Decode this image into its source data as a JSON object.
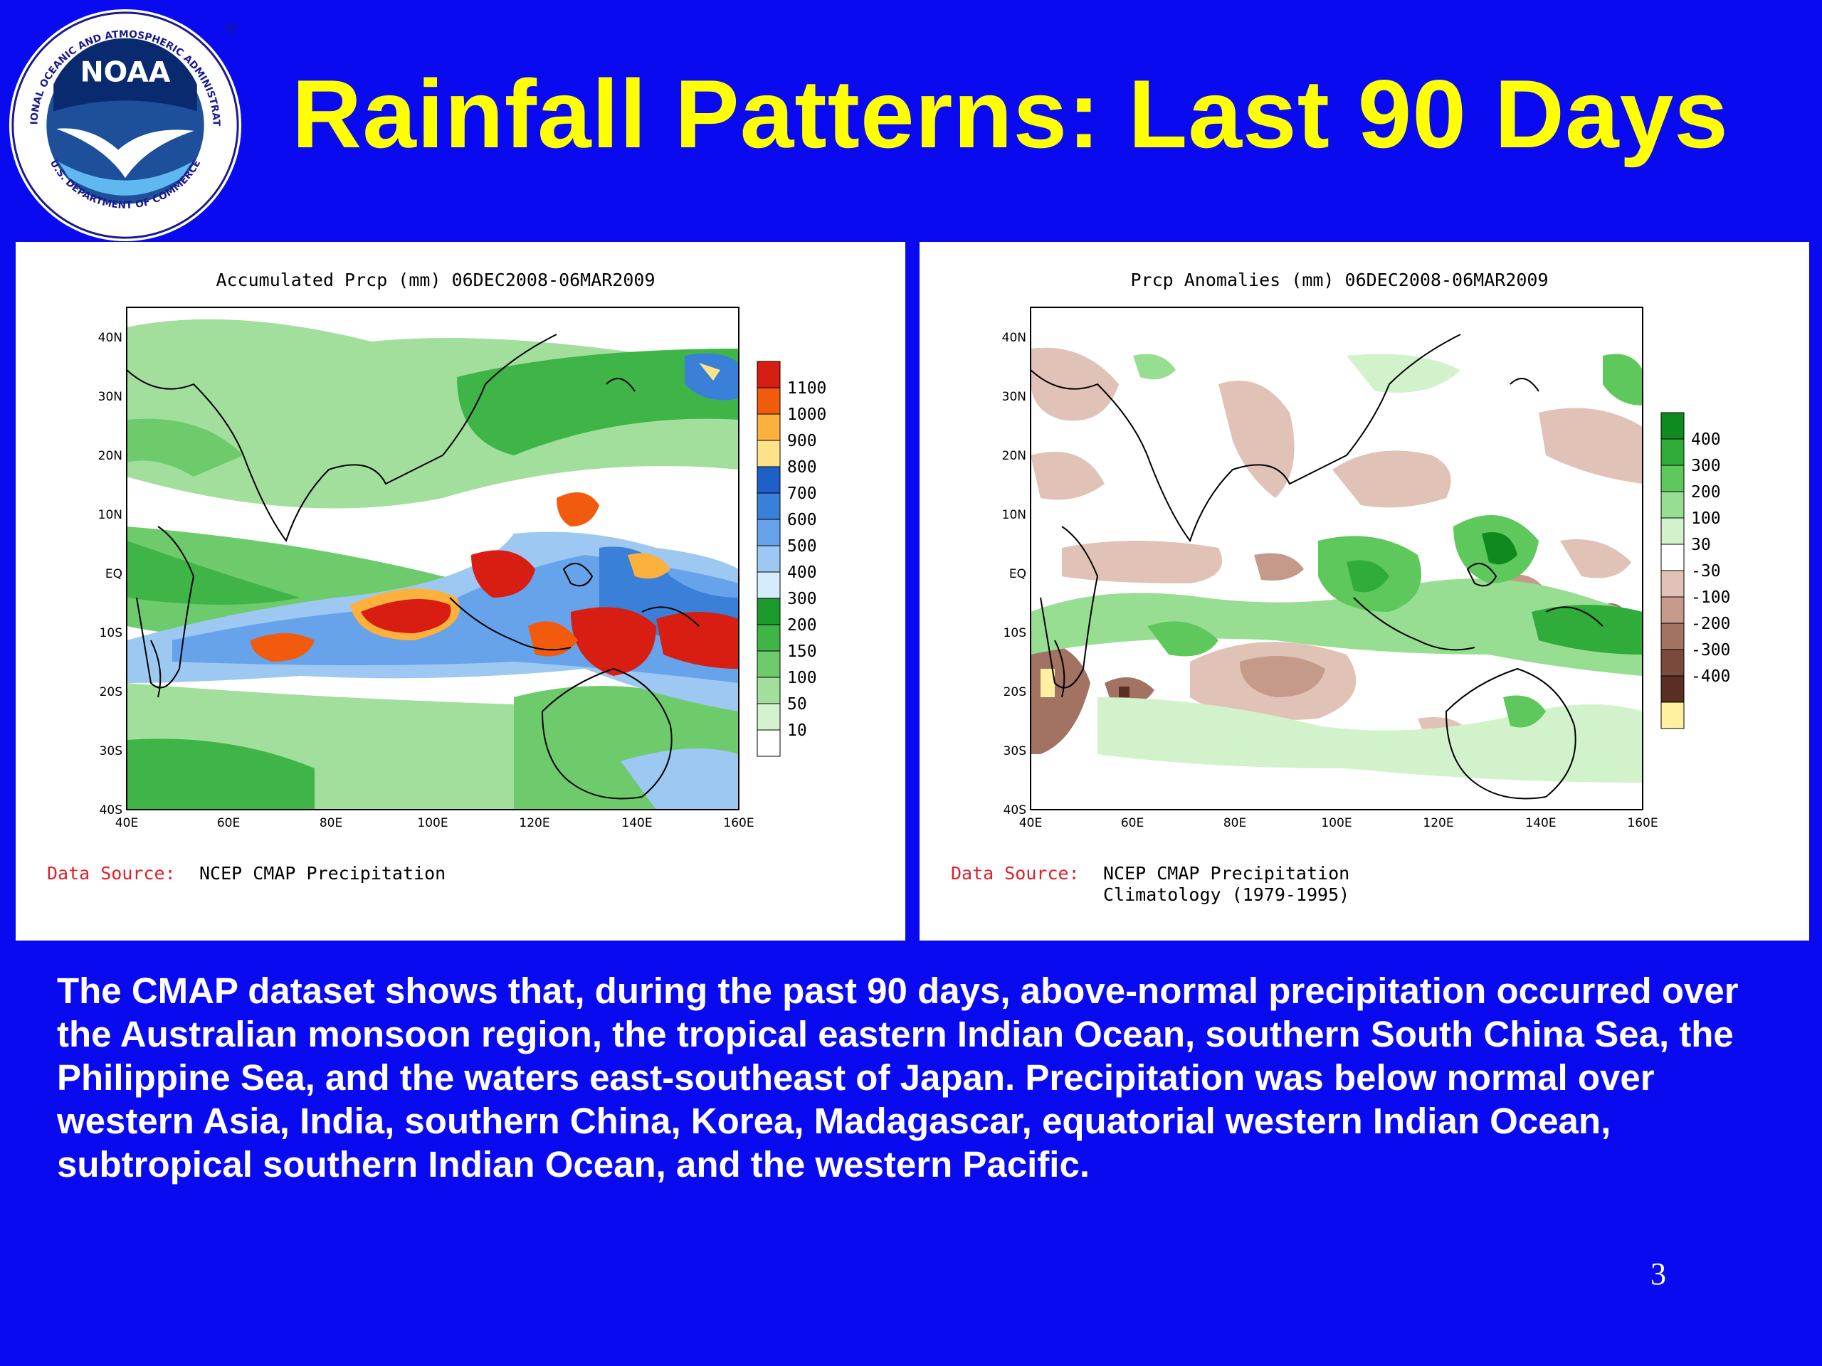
{
  "slide": {
    "title": "Rainfall Patterns: Last 90 Days",
    "page_number": "3",
    "body_text": "The CMAP dataset shows that, during the past 90 days, above-normal precipitation occurred over the Australian monsoon region, the tropical eastern Indian Ocean, southern South China Sea, the Philippine Sea, and the waters east-southeast of Japan. Precipitation was below normal over western Asia, India, southern China, Korea, Madagascar, equatorial western Indian Ocean, subtropical southern Indian Ocean, and the western Pacific."
  },
  "logo": {
    "name": "NOAA",
    "arc_top": "NATIONAL OCEANIC AND ATMOSPHERIC ADMINISTRATION",
    "arc_bottom": "U.S. DEPARTMENT OF COMMERCE",
    "registered": "®"
  },
  "colors": {
    "background": "#0a0af0",
    "title": "#ffff00",
    "body_text": "#ffffff",
    "source_label": "#e0202a"
  },
  "axes": {
    "lon_ticks": [
      "40E",
      "60E",
      "80E",
      "100E",
      "120E",
      "140E",
      "160E"
    ],
    "lat_ticks": [
      "40N",
      "30N",
      "20N",
      "10N",
      "EQ",
      "10S",
      "20S",
      "30S",
      "40S"
    ]
  },
  "map_left": {
    "title": "Accumulated Prcp (mm) 06DEC2008-06MAR2009",
    "source_label": "Data Source:",
    "source_text": "NCEP CMAP Precipitation",
    "colorbar": [
      {
        "label": "1100",
        "color": "#d81e12"
      },
      {
        "label": "1000",
        "color": "#f25a0e"
      },
      {
        "label": "900",
        "color": "#fbb13c"
      },
      {
        "label": "800",
        "color": "#fce38a"
      },
      {
        "label": "700",
        "color": "#1f5fc8"
      },
      {
        "label": "600",
        "color": "#3a7fd8"
      },
      {
        "label": "500",
        "color": "#66a3ea"
      },
      {
        "label": "400",
        "color": "#9dc8f2"
      },
      {
        "label": "300",
        "color": "#d4ecfb"
      },
      {
        "label": "200",
        "color": "#1c9a2c"
      },
      {
        "label": "150",
        "color": "#3fb548"
      },
      {
        "label": "100",
        "color": "#6ecb6c"
      },
      {
        "label": "50",
        "color": "#a2df9c"
      },
      {
        "label": "10",
        "color": "#d4f2d0"
      },
      {
        "label": "",
        "color": "#ffffff"
      }
    ]
  },
  "map_right": {
    "title": "Prcp Anomalies (mm) 06DEC2008-06MAR2009",
    "source_label": "Data Source:",
    "source_text": "NCEP CMAP Precipitation",
    "source_text_2": "Climatology (1979-1995)",
    "colorbar": [
      {
        "label": "400",
        "color": "#0e8a1e"
      },
      {
        "label": "300",
        "color": "#2fac3a"
      },
      {
        "label": "200",
        "color": "#5fc85c"
      },
      {
        "label": "100",
        "color": "#98de92"
      },
      {
        "label": "30",
        "color": "#d2f2cc"
      },
      {
        "label": "-30",
        "color": "#ffffff"
      },
      {
        "label": "-100",
        "color": "#e0c2b6"
      },
      {
        "label": "-200",
        "color": "#c59a8a"
      },
      {
        "label": "-300",
        "color": "#a27262"
      },
      {
        "label": "-400",
        "color": "#7a4a3c"
      },
      {
        "label": "",
        "color": "#5a2e22"
      },
      {
        "label": "",
        "color": "#fff1a0"
      }
    ]
  }
}
